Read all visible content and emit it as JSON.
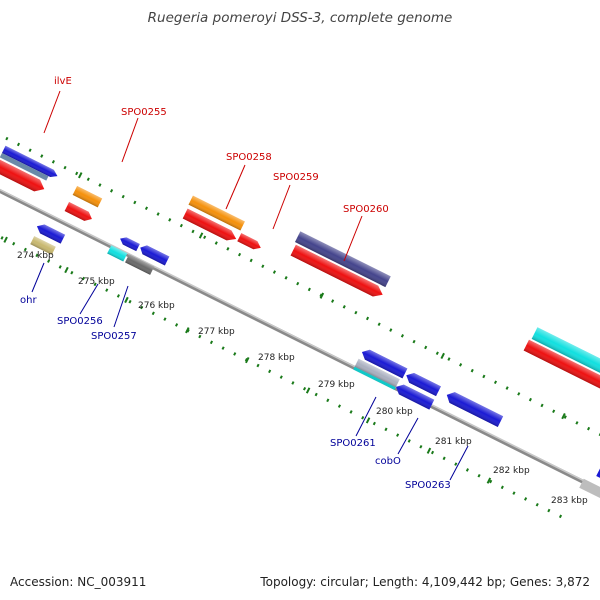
{
  "header": {
    "title": "Ruegeria pomeroyi DSS-3, complete genome"
  },
  "footer": {
    "accession_label": "Accession:",
    "accession": "NC_003911",
    "topology_label": "Topology:",
    "topology": "circular",
    "length_label": "Length:",
    "length": "4,109,442 bp",
    "genes_label": "Genes:",
    "genes": "3,872"
  },
  "colors": {
    "forward_label": "#cc0000",
    "reverse_label": "#000099",
    "tick": "#1a7a1a",
    "backbone": "#8a8a8a"
  },
  "ruler": {
    "unit": "kbp",
    "ticks": [
      "274 kbp",
      "275 kbp",
      "276 kbp",
      "277 kbp",
      "278 kbp",
      "279 kbp",
      "280 kbp",
      "281 kbp",
      "282 kbp",
      "283 kbp"
    ]
  },
  "forward_labels": [
    "ilvE",
    "SPO0255",
    "SPO0258",
    "SPO0259",
    "SPO0260"
  ],
  "reverse_labels": [
    "ohr",
    "SPO0256",
    "SPO0257",
    "SPO0261",
    "cobO",
    "SPO0263"
  ]
}
